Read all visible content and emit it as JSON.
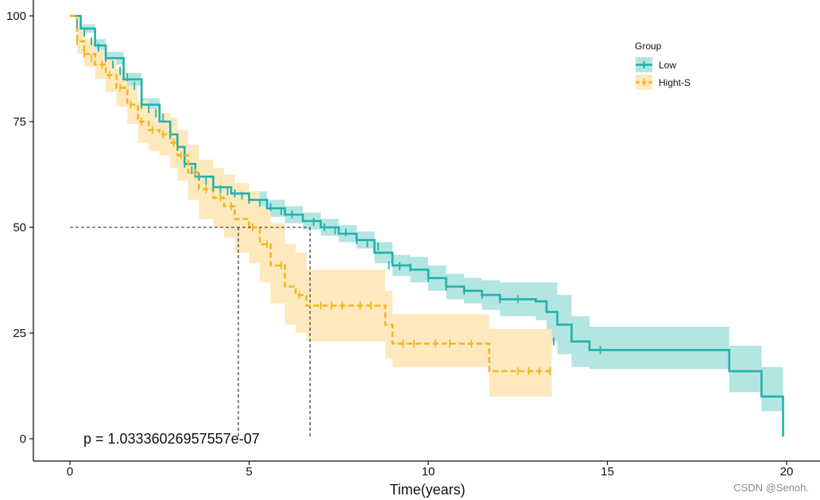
{
  "chart_data": {
    "type": "line",
    "kind": "kaplan-meier survival curve",
    "xlabel": "Time(years)",
    "ylabel": "",
    "xlim": [
      0,
      20
    ],
    "ylim": [
      0,
      100
    ],
    "xticks": [
      0,
      5,
      10,
      15,
      20
    ],
    "yticks": [
      0,
      25,
      50,
      75,
      100
    ],
    "grid": false,
    "legend": {
      "title": "Group",
      "position": "top-right"
    },
    "annotation": {
      "p_value_text": "p = 1.03336026957557e-07"
    },
    "median_lines": {
      "y": 50,
      "x_hight_s": 4.7,
      "x_low": 6.7
    },
    "series": [
      {
        "name": "Low",
        "color": "#20b2aa",
        "band_color": "#b3e5e2",
        "line_style": "solid",
        "x": [
          0,
          0.3,
          0.7,
          1.0,
          1.5,
          2.0,
          2.5,
          2.8,
          3.0,
          3.2,
          3.5,
          4.0,
          4.5,
          5.0,
          5.5,
          6.0,
          6.5,
          7.0,
          7.5,
          8.0,
          8.5,
          9.0,
          9.5,
          10.0,
          10.5,
          11.0,
          11.5,
          12.0,
          12.5,
          13.0,
          13.3,
          13.5,
          13.6,
          14.0,
          14.5,
          15.0,
          16.0,
          17.0,
          18.0,
          18.4,
          19.0,
          19.3,
          19.6,
          19.9
        ],
        "y": [
          100,
          97,
          93,
          90,
          85,
          79,
          75,
          72,
          69,
          65,
          62,
          59.5,
          58,
          56.5,
          54.5,
          53,
          51.5,
          50,
          48.5,
          47,
          44,
          41,
          40,
          38,
          36,
          35,
          34,
          33,
          33,
          32.5,
          30,
          30,
          27,
          23,
          21,
          21,
          21,
          21,
          21,
          16,
          16,
          10,
          10,
          0.5
        ],
        "upper": [
          100,
          98,
          94.5,
          91.5,
          86.5,
          80.5,
          77,
          74,
          71,
          67,
          64,
          61.5,
          60,
          58.5,
          56.5,
          55,
          53.5,
          52,
          50.5,
          49,
          46.5,
          43.5,
          43,
          41,
          39,
          38,
          37.5,
          37,
          37,
          37,
          37,
          37,
          34,
          29,
          26.5,
          26.5,
          26.5,
          26.5,
          26.5,
          22,
          22,
          17,
          17,
          17
        ],
        "lower": [
          100,
          96,
          91.5,
          88.5,
          83.5,
          77.5,
          73,
          70,
          67,
          63,
          60,
          57.5,
          56,
          54.5,
          52.5,
          51,
          49.5,
          48,
          46.5,
          45,
          41.5,
          38.5,
          37,
          35,
          33,
          32,
          30.5,
          29,
          29,
          28,
          23,
          23,
          20,
          17,
          16.5,
          16.5,
          16.5,
          16.5,
          16.5,
          11,
          11,
          6.5,
          6.5,
          0.5
        ],
        "censor_x": [
          0.2,
          0.4,
          0.6,
          0.8,
          1.0,
          1.2,
          1.4,
          1.6,
          1.8,
          2.0,
          2.2,
          2.4,
          2.6,
          2.8,
          3.0,
          3.2,
          3.4,
          3.6,
          3.8,
          4.0,
          4.2,
          4.4,
          4.6,
          4.8,
          5.0,
          5.3,
          5.6,
          5.9,
          6.2,
          6.5,
          6.8,
          7.1,
          7.4,
          7.7,
          8.0,
          8.3,
          8.6,
          8.9,
          9.2,
          9.5,
          10.0,
          10.5,
          11.0,
          11.5,
          12.0,
          12.5,
          13.5,
          14.8
        ],
        "censor_y": [
          98,
          96,
          94,
          92.5,
          90,
          88.5,
          87,
          85.5,
          83.5,
          79,
          78,
          77,
          76,
          72,
          69,
          65,
          63.5,
          62,
          61,
          59.5,
          59,
          58.5,
          58,
          57.5,
          56.5,
          55.8,
          54.8,
          53.8,
          53.1,
          52.2,
          51.3,
          50,
          49.3,
          48.8,
          47,
          46.2,
          45.5,
          41,
          40.8,
          40.5,
          38,
          36,
          35,
          34,
          33,
          33,
          23,
          21
        ]
      },
      {
        "name": "Hight-S",
        "color": "#f5b51e",
        "band_color": "#fde9bd",
        "line_style": "dashed",
        "x": [
          0,
          0.2,
          0.4,
          0.7,
          1.0,
          1.3,
          1.6,
          1.9,
          2.2,
          2.5,
          2.8,
          3.0,
          3.3,
          3.6,
          4.0,
          4.3,
          4.6,
          5.0,
          5.3,
          5.6,
          6.0,
          6.3,
          6.6,
          7.0,
          7.5,
          8.0,
          8.5,
          8.8,
          9.0,
          9.5,
          10.0,
          10.5,
          11.0,
          11.5,
          11.7,
          12.0,
          12.5,
          13.0,
          13.45
        ],
        "y": [
          100,
          94,
          91,
          88.5,
          86,
          83,
          79,
          75,
          73,
          72,
          70,
          67,
          63,
          59,
          57,
          55,
          52,
          50,
          46,
          41,
          36,
          34,
          31.5,
          31.5,
          31.5,
          31.5,
          31.5,
          27,
          22.5,
          22.5,
          22.5,
          22.5,
          22.5,
          22.5,
          16,
          16,
          16,
          16,
          16
        ],
        "upper": [
          100,
          97,
          94.5,
          92,
          90,
          87.5,
          83.5,
          80,
          78,
          77,
          76,
          73,
          69.5,
          66,
          64,
          62.5,
          60.5,
          58.5,
          55,
          51,
          46,
          44,
          40,
          40,
          40,
          40,
          40,
          35,
          29.5,
          29.5,
          29.5,
          29.5,
          29.5,
          29.5,
          26,
          26,
          26,
          26,
          26
        ],
        "lower": [
          100,
          91,
          88,
          85,
          82,
          78.5,
          74.5,
          70,
          68,
          67,
          64,
          61,
          56.5,
          52,
          50,
          47.5,
          44,
          41.5,
          37,
          32,
          27,
          25,
          23,
          23,
          23,
          23,
          23,
          19,
          17,
          17,
          17,
          17,
          17,
          17,
          10,
          10,
          10,
          10,
          10
        ],
        "censor_x": [
          0.2,
          0.4,
          0.6,
          0.9,
          1.1,
          1.4,
          1.7,
          2.0,
          2.3,
          2.6,
          2.9,
          3.1,
          3.5,
          3.8,
          4.2,
          4.5,
          5.1,
          5.5,
          5.9,
          6.4,
          7.0,
          7.3,
          7.6,
          8.1,
          8.4,
          9.3,
          9.6,
          10.2,
          10.6,
          11.2,
          12.5,
          12.8,
          13.1,
          13.4
        ],
        "censor_y": [
          94,
          91,
          90,
          88.5,
          86,
          83,
          79,
          75,
          73,
          72,
          70,
          67,
          63,
          59,
          57,
          55,
          50,
          46,
          41,
          34,
          31.5,
          31.5,
          31.5,
          31.5,
          31.5,
          22.5,
          22.5,
          22.5,
          22.5,
          22.5,
          16,
          16,
          16,
          16
        ]
      }
    ]
  },
  "watermark": "CSDN @Senoh."
}
